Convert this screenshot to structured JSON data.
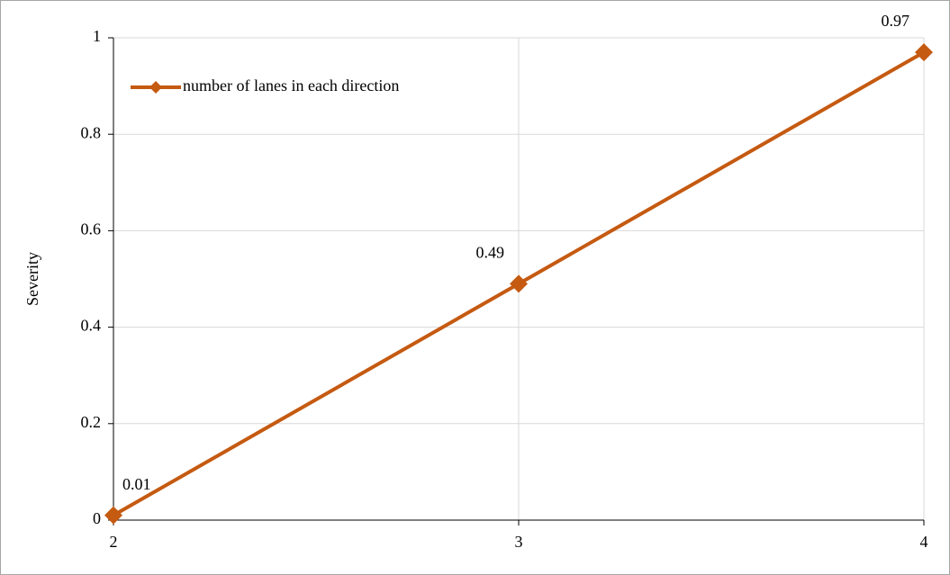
{
  "chart_data": {
    "type": "line",
    "y_label": "Severity",
    "x": [
      2,
      3,
      4
    ],
    "series": [
      {
        "name": "number of lanes in each direction",
        "color": "#c55a11",
        "values": [
          0.01,
          0.49,
          0.97
        ]
      }
    ],
    "xlim": [
      2,
      4
    ],
    "xticks": [
      2,
      3,
      4
    ],
    "ylim": [
      0,
      1
    ],
    "yticks": [
      0,
      0.2,
      0.4,
      0.6,
      0.8,
      1
    ],
    "grid": true,
    "legend": "top-left",
    "data_labels": true
  }
}
